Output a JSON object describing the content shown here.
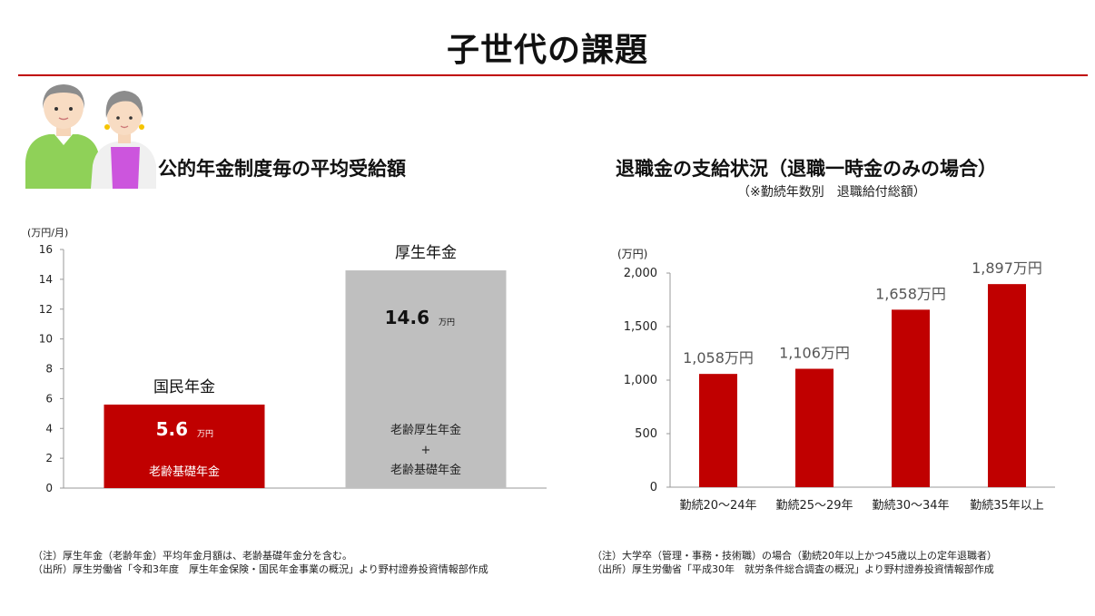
{
  "page": {
    "title": "子世代の課題"
  },
  "left_chart": {
    "title": "公的年金制度毎の平均受給額",
    "unit_label": "(万円/月)",
    "notes": [
      "（注）厚生年金（老齢年金）平均年金月額は、老齢基礎年金分を含む。",
      "（出所）厚生労働省「令和3年度　厚生年金保険・国民年金事業の概況」より野村證券投資情報部作成"
    ]
  },
  "right_chart": {
    "title": "退職金の支給状況（退職一時金のみの場合）",
    "subtitle": "（※勤続年数別　退職給付総額）",
    "unit_label": "(万円)",
    "notes": [
      "（注）大学卒（管理・事務・技術職）の場合（勤続20年以上かつ45歳以上の定年退職者）",
      "（出所）厚生労働省「平成30年　就労条件総合調査の概況」より野村證券投資情報部作成"
    ]
  },
  "chart_data": [
    {
      "type": "bar",
      "categories": [
        "国民年金",
        "厚生年金"
      ],
      "values": [
        5.6,
        14.6
      ],
      "value_labels": [
        "5.6",
        "14.6"
      ],
      "value_unit": "万円",
      "bar_inner_labels": [
        [
          "老齢基礎年金"
        ],
        [
          "老齢厚生年金",
          "+",
          "老齢基礎年金"
        ]
      ],
      "colors": [
        "#c00000",
        "#bfbfbf"
      ],
      "title": "公的年金制度毎の平均受給額",
      "ylabel": "(万円/月)",
      "ylim": [
        0,
        16
      ],
      "yticks": [
        0,
        2,
        4,
        6,
        8,
        10,
        12,
        14,
        16
      ],
      "grid": false
    },
    {
      "type": "bar",
      "categories": [
        "勤続20～24年",
        "勤続25～29年",
        "勤続30～34年",
        "勤続35年以上"
      ],
      "values": [
        1058,
        1106,
        1658,
        1897
      ],
      "value_labels": [
        "1,058万円",
        "1,106万円",
        "1,658万円",
        "1,897万円"
      ],
      "color": "#c00000",
      "title": "退職金の支給状況（退職一時金のみの場合）",
      "ylabel": "(万円)",
      "ylim": [
        0,
        2000
      ],
      "yticks": [
        0,
        500,
        1000,
        1500,
        2000
      ],
      "ytick_labels": [
        "0",
        "500",
        "1,000",
        "1,500",
        "2,000"
      ],
      "grid": false
    }
  ]
}
